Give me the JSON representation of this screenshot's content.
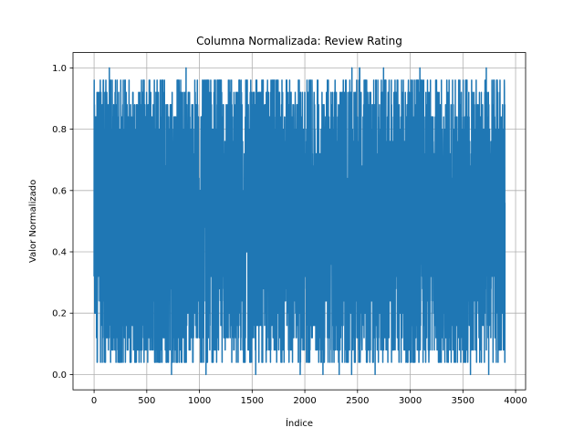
{
  "chart_data": {
    "type": "line",
    "title": "Columna Normalizada: Review Rating",
    "xlabel": "Índice",
    "ylabel": "Valor Normalizado",
    "xlim": [
      -200,
      4095
    ],
    "ylim": [
      -0.05,
      1.05
    ],
    "xticks": [
      0,
      500,
      1000,
      1500,
      2000,
      2500,
      3000,
      3500,
      4000
    ],
    "xtick_labels": [
      "0",
      "500",
      "1000",
      "1500",
      "2000",
      "2500",
      "3000",
      "3500",
      "4000"
    ],
    "yticks": [
      0.0,
      0.2,
      0.4,
      0.6,
      0.8,
      1.0
    ],
    "ytick_labels": [
      "0.0",
      "0.2",
      "0.4",
      "0.6",
      "0.8",
      "1.0"
    ],
    "grid": true,
    "line_color": "#1f77b4",
    "series": [
      {
        "x_start": 0,
        "x_end": 3899,
        "point_count": 3900,
        "value_min": 0.0,
        "value_max": 1.0,
        "value_levels": [
          0.0,
          0.04,
          0.08,
          0.12,
          0.16,
          0.2,
          0.24,
          0.28,
          0.32,
          0.36,
          0.4,
          0.44,
          0.48,
          0.52,
          0.56,
          0.6,
          0.64,
          0.68,
          0.72,
          0.76,
          0.8,
          0.84,
          0.88,
          0.92,
          0.96,
          1.0
        ]
      }
    ]
  }
}
